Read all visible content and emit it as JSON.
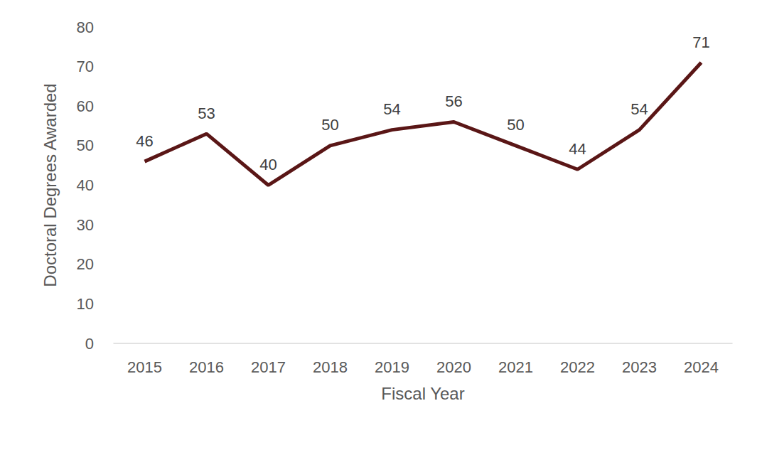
{
  "chart_data": {
    "type": "line",
    "x_label": "Fiscal Year",
    "y_label": "Doctoral Degrees Awarded",
    "categories": [
      "2015",
      "2016",
      "2017",
      "2018",
      "2019",
      "2020",
      "2021",
      "2022",
      "2023",
      "2024"
    ],
    "values": [
      46,
      53,
      40,
      50,
      54,
      56,
      50,
      44,
      54,
      71
    ],
    "color": "#5a1616",
    "ylim": [
      0,
      80
    ],
    "yticks": [
      0,
      10,
      20,
      30,
      40,
      50,
      60,
      70,
      80
    ],
    "grid": false,
    "data_labels": true
  }
}
